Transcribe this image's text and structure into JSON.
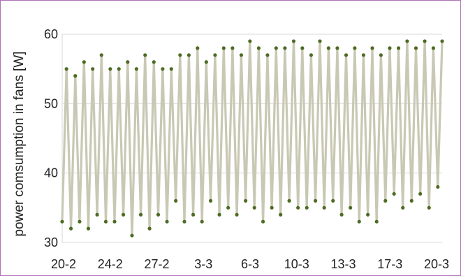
{
  "chart_data": {
    "type": "line",
    "title": "",
    "xlabel": "",
    "ylabel": "power comsumption in fans [W]",
    "ylim": [
      30,
      60
    ],
    "y_ticks": [
      30,
      40,
      50,
      60
    ],
    "x_tick_labels": [
      "20-2",
      "24-2",
      "27-2",
      "3-3",
      "6-3",
      "10-3",
      "13-3",
      "17-3",
      "20-3"
    ],
    "grid": "horizontal",
    "legend": "none",
    "colors": {
      "line": "#c8c8b4",
      "marker": "#4e6b23",
      "grid": "#d9d9d9"
    },
    "series": [
      {
        "x": [
          0.0,
          0.33,
          0.67,
          1.0,
          1.33,
          1.67,
          2.0,
          2.33,
          2.67,
          3.0,
          3.33,
          3.67,
          4.0,
          4.33,
          4.67,
          5.0,
          5.33,
          5.67,
          6.0,
          6.33,
          6.67,
          7.0,
          7.33,
          7.67,
          8.0,
          8.33,
          8.67,
          9.0,
          9.33,
          9.67,
          10.0,
          10.33,
          10.67,
          11.0,
          11.33,
          11.67,
          12.0,
          12.33,
          12.67,
          13.0,
          13.33,
          13.67,
          14.0,
          14.33,
          14.67,
          15.0,
          15.33,
          15.67,
          16.0,
          16.33,
          16.67,
          17.0,
          17.33,
          17.67,
          18.0,
          18.33,
          18.67,
          19.0,
          19.33,
          19.67,
          20.0,
          20.33,
          20.67,
          21.0,
          21.33,
          21.67,
          22.0,
          22.33,
          22.67,
          23.0,
          23.33,
          23.67,
          24.0,
          24.33,
          24.67,
          25.0,
          25.33,
          25.67,
          26.0,
          26.33,
          26.67,
          27.0,
          27.33,
          27.67,
          28.0,
          28.33,
          28.67,
          29.0
        ],
        "y": [
          33,
          55,
          32,
          54,
          33,
          56,
          32,
          55,
          34,
          57,
          33,
          55,
          33,
          55,
          34,
          56,
          31,
          55,
          34,
          57,
          32,
          56,
          34,
          55,
          33,
          55,
          36,
          57,
          33,
          57,
          34,
          58,
          33,
          56,
          36,
          57,
          34,
          58,
          35,
          58,
          34,
          57,
          36,
          59,
          35,
          58,
          33,
          57,
          35,
          58,
          34,
          58,
          36,
          59,
          35,
          58,
          35,
          57,
          36,
          59,
          35,
          58,
          36,
          58,
          34,
          57,
          35,
          58,
          33,
          57,
          34,
          58,
          33,
          57,
          36,
          58,
          37,
          58,
          35,
          59,
          36,
          58,
          37,
          59,
          35,
          58,
          38,
          59
        ]
      }
    ]
  }
}
